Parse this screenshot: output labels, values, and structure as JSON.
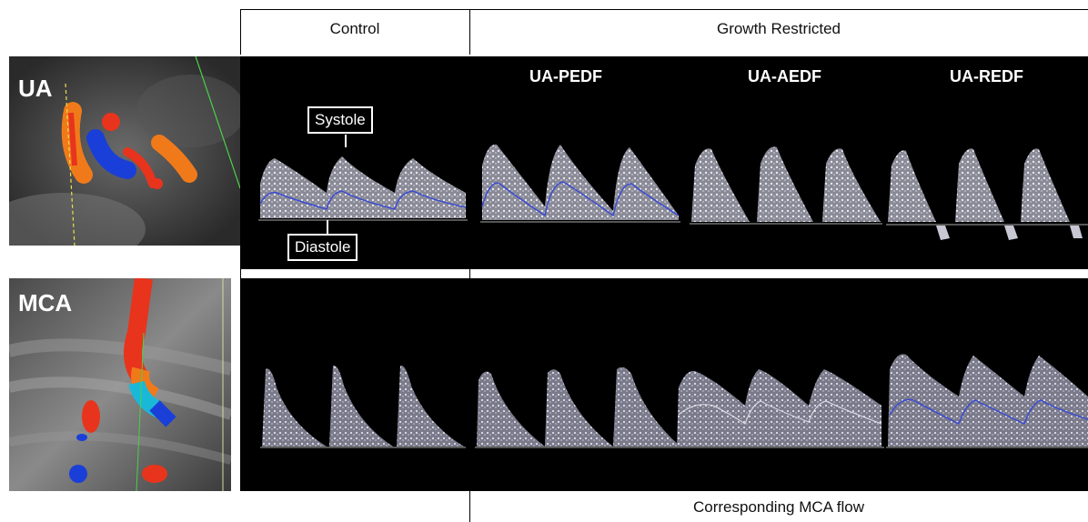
{
  "headers": {
    "control": "Control",
    "growth_restricted": "Growth Restricted",
    "footer": "Corresponding MCA flow"
  },
  "rows": {
    "ua_label": "UA",
    "mca_label": "MCA"
  },
  "columns": [
    "UA-PEDF",
    "UA-AEDF",
    "UA-REDF"
  ],
  "callouts": {
    "systole": "Systole",
    "diastole": "Diastole"
  },
  "colors": {
    "doppler_red": "#e8341c",
    "doppler_orange": "#f07a1a",
    "doppler_blue": "#1a3fd8",
    "doppler_cyan": "#1ab8d8",
    "envelope_blue": "#3a4bd0"
  }
}
